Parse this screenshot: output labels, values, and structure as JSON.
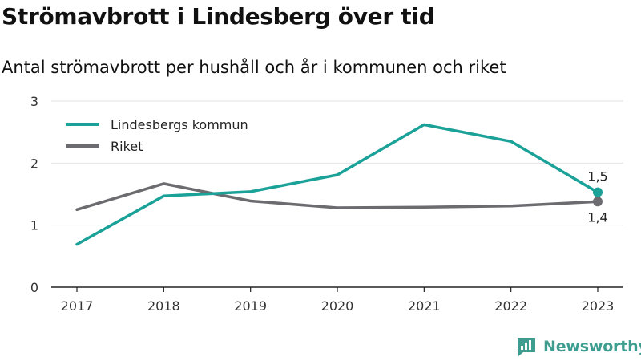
{
  "title": "Strömavbrott i Lindesberg över tid",
  "subtitle": "Antal strömavbrott per hushåll och år i kommunen och riket",
  "brand": {
    "name": "Newsworthy",
    "color": "#3d9e8f"
  },
  "chart_data": {
    "type": "line",
    "title": "Strömavbrott i Lindesberg över tid",
    "subtitle": "Antal strömavbrott per hushåll och år i kommunen och riket",
    "xlabel": "",
    "ylabel": "",
    "x": [
      "2017",
      "2018",
      "2019",
      "2020",
      "2021",
      "2022",
      "2023"
    ],
    "ylim": [
      0,
      3
    ],
    "yticks": [
      0,
      1,
      2,
      3
    ],
    "ytick_labels": [
      "0",
      "1",
      "2",
      "3"
    ],
    "grid": true,
    "legend_position": "top-left",
    "series": [
      {
        "name": "Lindesbergs kommun",
        "color": "#1aa198",
        "values": [
          0.69,
          1.47,
          1.54,
          1.81,
          2.62,
          2.35,
          1.53
        ],
        "end_label": "1,5"
      },
      {
        "name": "Riket",
        "color": "#6b6b70",
        "values": [
          1.25,
          1.67,
          1.39,
          1.28,
          1.29,
          1.31,
          1.38
        ],
        "end_label": "1,4"
      }
    ]
  }
}
